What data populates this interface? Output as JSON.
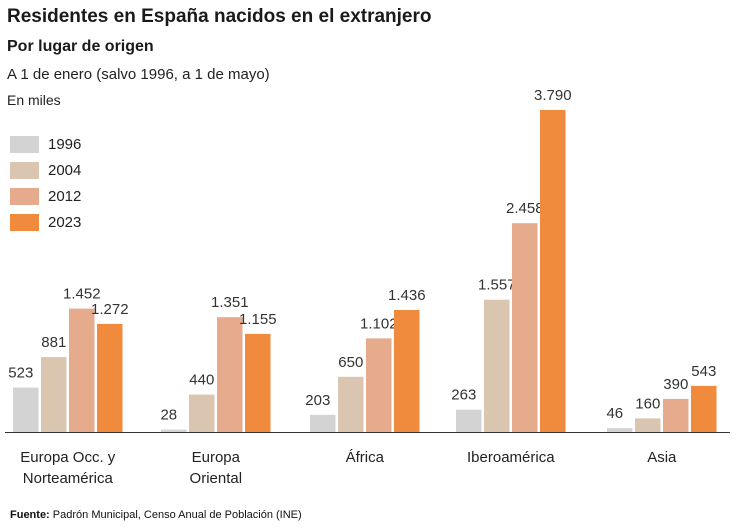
{
  "header": {
    "title": "Residentes en España nacidos en el extranjero",
    "subtitle": "Por lugar de origen",
    "note": "A 1 de enero (salvo 1996, a 1 de mayo)",
    "units": "En miles"
  },
  "source": {
    "label": "Fuente:",
    "text": "Padrón Municipal, Censo Anual de Población (INE)"
  },
  "colors": {
    "1996": "#d3d3d3",
    "2004": "#d9c5b0",
    "2012": "#e6ab8c",
    "2023": "#f08a3c",
    "axis": "#333333",
    "value_text": "#333333"
  },
  "chart_data": {
    "type": "bar",
    "title": "Residentes en España nacidos en el extranjero",
    "subtitle": "Por lugar de origen",
    "ylabel": "En miles",
    "ylim": [
      0,
      3790
    ],
    "grid": false,
    "legend_position": "top-left",
    "categories": [
      "Europa Occ. y Norteamérica",
      "Europa Oriental",
      "África",
      "Iberoamérica",
      "Asia"
    ],
    "category_lines": [
      [
        "Europa Occ. y",
        "Norteamérica"
      ],
      [
        "Europa",
        "Oriental"
      ],
      [
        "África"
      ],
      [
        "Iberoamérica"
      ],
      [
        "Asia"
      ]
    ],
    "series": [
      {
        "name": "1996",
        "values": [
          523,
          28,
          203,
          263,
          46
        ],
        "labels": [
          "523",
          "28",
          "203",
          "263",
          "46"
        ]
      },
      {
        "name": "2004",
        "values": [
          881,
          440,
          650,
          1557,
          160
        ],
        "labels": [
          "881",
          "440",
          "650",
          "1.557",
          "160"
        ]
      },
      {
        "name": "2012",
        "values": [
          1452,
          1351,
          1102,
          2458,
          390
        ],
        "labels": [
          "1.452",
          "1.351",
          "1.102",
          "2.458",
          "390"
        ]
      },
      {
        "name": "2023",
        "values": [
          1272,
          1155,
          1436,
          3790,
          543
        ],
        "labels": [
          "1.272",
          "1.155",
          "1.436",
          "3.790",
          "543"
        ]
      }
    ]
  }
}
